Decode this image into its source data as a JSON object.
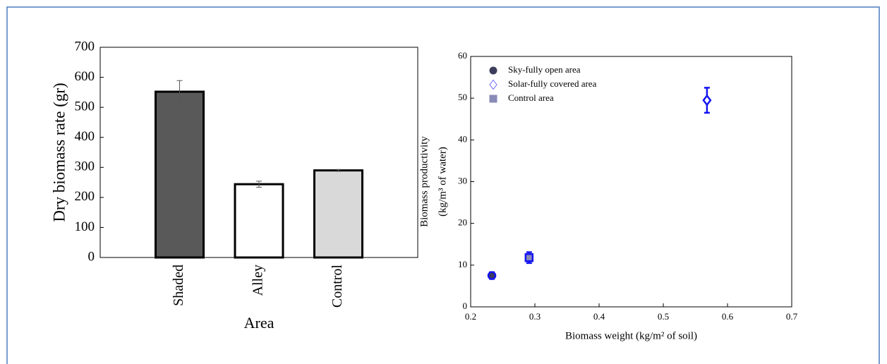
{
  "chart_data": [
    {
      "type": "bar",
      "ylabel": "Dry biomass rate (gr)",
      "xlabel": "Area",
      "categories": [
        "Shaded",
        "Alley",
        "Control"
      ],
      "values": [
        552,
        244,
        290
      ],
      "errors": [
        37,
        10,
        3
      ],
      "colors": [
        "#595959",
        "#ffffff",
        "#d9d9d9"
      ],
      "edgecolor": "#000000",
      "ylim": [
        0,
        700
      ],
      "yticks": [
        0,
        100,
        200,
        300,
        400,
        500,
        600,
        700
      ]
    },
    {
      "type": "scatter",
      "xlabel": "Biomass weight (kg/m² of soil)",
      "ylabel": [
        "Biomass productivity",
        "(kg/m³ of water)"
      ],
      "series": [
        {
          "name": "Sky-fully open area",
          "color": "#3c3c5c",
          "marker": "circle",
          "x": [
            0.233
          ],
          "values": [
            7.5
          ],
          "errors": [
            0.8
          ]
        },
        {
          "name": "Solar-fully covered area",
          "color": "#6b6bff",
          "marker": "diamond",
          "x": [
            0.568
          ],
          "values": [
            49.5
          ],
          "errors": [
            3
          ]
        },
        {
          "name": "Control area",
          "color": "#8a8ab8",
          "marker": "square",
          "x": [
            0.291
          ],
          "values": [
            11.8
          ],
          "errors": [
            1.3
          ]
        }
      ],
      "edgecolor": "#1414f0",
      "legend": "upper left",
      "xlim": [
        0.2,
        0.7
      ],
      "xticks": [
        0.2,
        0.3,
        0.4,
        0.5,
        0.6,
        0.7
      ],
      "ylim": [
        0,
        60
      ],
      "yticks": [
        0,
        10,
        20,
        30,
        40,
        50,
        60
      ]
    }
  ]
}
